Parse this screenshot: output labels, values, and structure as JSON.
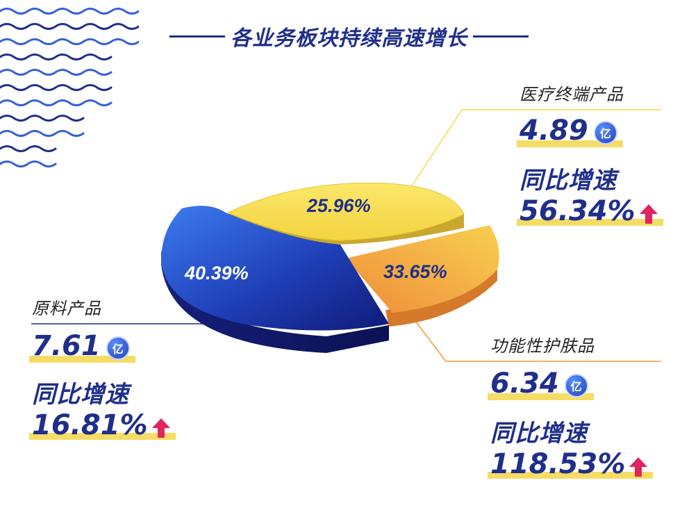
{
  "title": "各业务板块持续高速增长",
  "unit_icon_text": "亿",
  "colors": {
    "navy": "#1f2f8a",
    "yellow": "#f5dc64",
    "orange": "#f29a3c",
    "arrow": "#e0245e"
  },
  "chart_data": {
    "type": "pie",
    "title": "各业务板块持续高速增长",
    "slices": [
      {
        "name": "原料产品",
        "percent_label": "40.39%",
        "value": 40.39,
        "amount": "7.61",
        "growth_label": "同比增速",
        "growth": "16.81%"
      },
      {
        "name": "医疗终端产品",
        "percent_label": "25.96%",
        "value": 25.96,
        "amount": "4.89",
        "growth_label": "同比增速",
        "growth": "56.34%"
      },
      {
        "name": "功能性护肤品",
        "percent_label": "33.65%",
        "value": 33.65,
        "amount": "6.34",
        "growth_label": "同比增速",
        "growth": "118.53%"
      }
    ]
  }
}
